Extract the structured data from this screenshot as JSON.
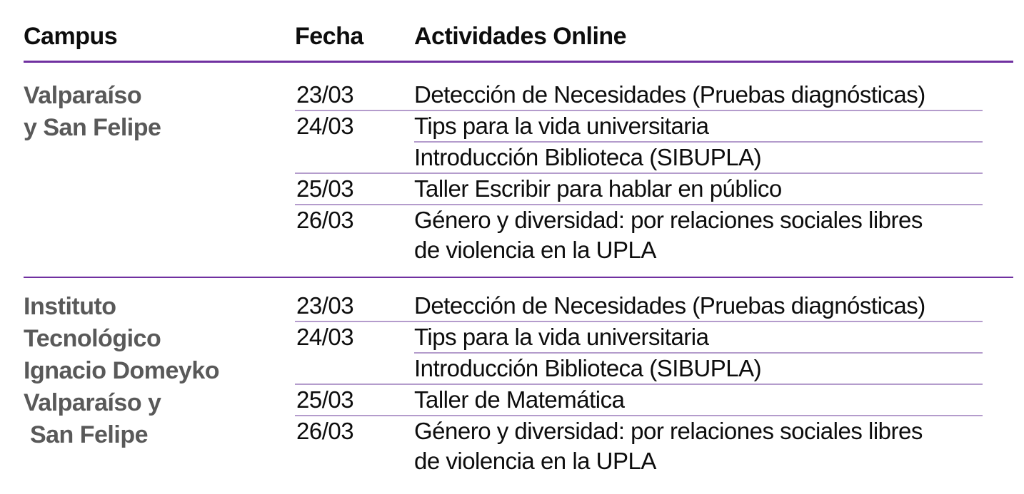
{
  "colors": {
    "header_rule": "#7030A0",
    "group_rule": "#7030A0",
    "row_rule": "#B49CCC",
    "campus_text": "#595959",
    "body_text": "#0d0d0d"
  },
  "table": {
    "headers": {
      "campus": "Campus",
      "fecha": "Fecha",
      "actividades": "Actividades Online"
    },
    "groups": [
      {
        "campus_lines": [
          "Valparaíso",
          "y San Felipe"
        ],
        "rows": [
          {
            "date": "23/03",
            "activity": "Detección de Necesidades (Pruebas diagnósticas)"
          },
          {
            "date": "24/03",
            "activity": "Tips para la vida universitaria"
          },
          {
            "date": "",
            "activity": "Introducción Biblioteca (SIBUPLA)"
          },
          {
            "date": "25/03",
            "activity": "Taller Escribir para hablar en público"
          },
          {
            "date": "26/03",
            "activity": "Género y diversidad: por relaciones sociales libres",
            "activity_line2": "de violencia en la UPLA"
          }
        ]
      },
      {
        "campus_lines": [
          "Instituto",
          "Tecnológico",
          "Ignacio Domeyko",
          "Valparaíso y",
          " San Felipe"
        ],
        "rows": [
          {
            "date": "23/03",
            "activity": "Detección de Necesidades (Pruebas diagnósticas)"
          },
          {
            "date": "24/03",
            "activity": "Tips para la vida universitaria"
          },
          {
            "date": "",
            "activity": "Introducción Biblioteca (SIBUPLA)"
          },
          {
            "date": "25/03",
            "activity": "Taller de Matemática"
          },
          {
            "date": "26/03",
            "activity": "Género y diversidad: por relaciones sociales libres",
            "activity_line2": "de violencia en la UPLA"
          }
        ]
      }
    ]
  }
}
